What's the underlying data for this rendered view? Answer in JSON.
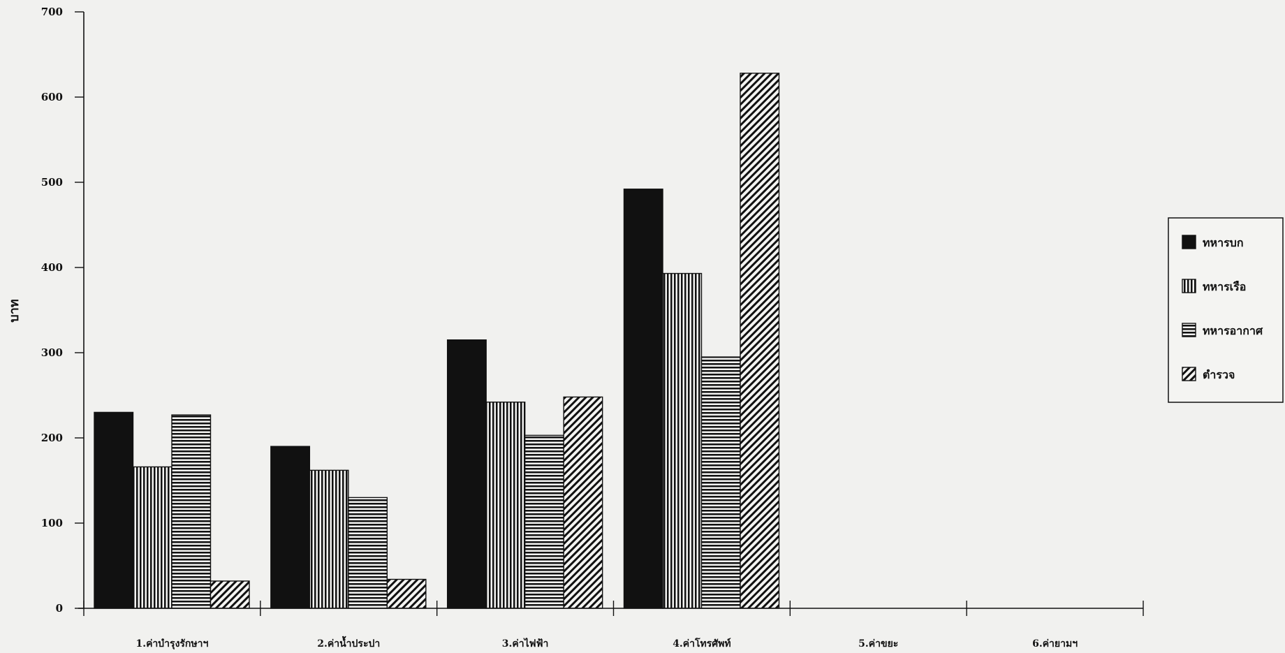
{
  "chart_data": {
    "type": "bar",
    "title": "",
    "xlabel": "",
    "ylabel": "บาท",
    "ylim": [
      0,
      700
    ],
    "yticks": [
      0,
      100,
      200,
      300,
      400,
      500,
      600,
      700
    ],
    "categories": [
      "1.ค่าบำรุงรักษาฯ",
      "2.ค่าน้ำประปา",
      "3.ค่าไฟฟ้า",
      "4.ค่าโทรศัพท์",
      "5.ค่าขยะ",
      "6.ค่ายามฯ"
    ],
    "series": [
      {
        "name": "ทหารบก",
        "pattern": "solid",
        "values": [
          230,
          190,
          315,
          492,
          0,
          0
        ]
      },
      {
        "name": "ทหารเรือ",
        "pattern": "vertical",
        "values": [
          166,
          162,
          242,
          393,
          0,
          0
        ]
      },
      {
        "name": "ทหารอากาศ",
        "pattern": "horizontal",
        "values": [
          227,
          130,
          203,
          295,
          0,
          0
        ]
      },
      {
        "name": "ตำรวจ",
        "pattern": "diagonal",
        "values": [
          32,
          34,
          248,
          628,
          0,
          0
        ]
      }
    ],
    "grid": false,
    "legend_position": "right"
  },
  "colors": {
    "bar_fill": "#111111",
    "background": "#f1f1ef",
    "axis": "#111111"
  }
}
